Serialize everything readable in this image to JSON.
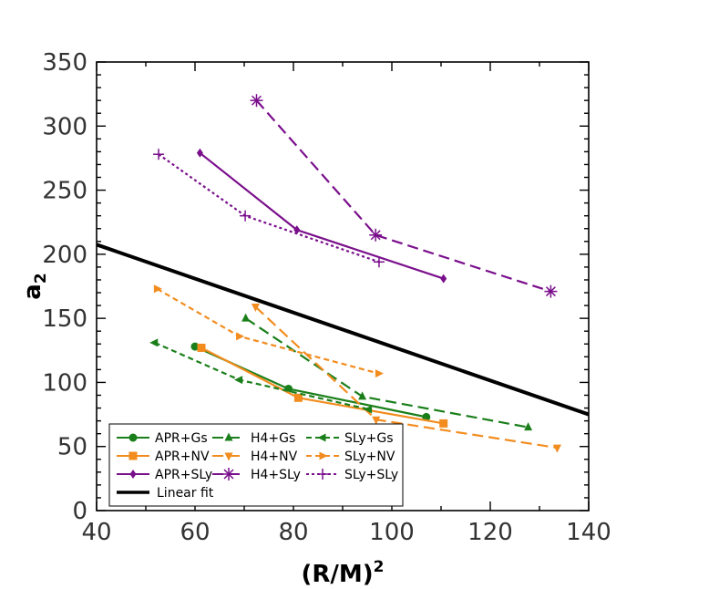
{
  "chart_data": {
    "type": "line",
    "title": "",
    "xlabel": "(R/M)",
    "xlabel_sup": "2",
    "ylabel": "a",
    "ylabel_sub": "2",
    "xlim": [
      40,
      140
    ],
    "ylim": [
      0,
      350
    ],
    "x_ticks": [
      40,
      60,
      80,
      100,
      120,
      140
    ],
    "y_ticks": [
      0,
      50,
      100,
      150,
      200,
      250,
      300,
      350
    ],
    "x_tick_labels": [
      "40",
      "60",
      "80",
      "100",
      "120",
      "140"
    ],
    "y_tick_labels": [
      "0",
      "50",
      "100",
      "150",
      "200",
      "250",
      "300",
      "350"
    ],
    "grid": false,
    "legend_position": "bottom-left",
    "series": [
      {
        "name": "APR+Gs",
        "color": "#1a7f1a",
        "dash": "solid",
        "marker": "circle",
        "points": [
          [
            60.0,
            128
          ],
          [
            79.0,
            95
          ],
          [
            107.0,
            73
          ]
        ]
      },
      {
        "name": "APR+NV",
        "color": "#f28c1e",
        "dash": "solid",
        "marker": "square",
        "points": [
          [
            61.3,
            127
          ],
          [
            81.0,
            88
          ],
          [
            110.5,
            68
          ]
        ]
      },
      {
        "name": "APR+SLy",
        "color": "#7a0f8c",
        "dash": "solid",
        "marker": "diamond",
        "points": [
          [
            61.0,
            279
          ],
          [
            80.7,
            219
          ],
          [
            110.5,
            181
          ]
        ]
      },
      {
        "name": "H4+Gs",
        "color": "#1a7f1a",
        "dash": "longdash",
        "marker": "triangle-up",
        "points": [
          [
            70.3,
            150
          ],
          [
            94.0,
            89
          ],
          [
            127.7,
            65
          ]
        ]
      },
      {
        "name": "H4+NV",
        "color": "#f28c1e",
        "dash": "longdash",
        "marker": "triangle-down",
        "points": [
          [
            72.3,
            159
          ],
          [
            96.8,
            71
          ],
          [
            133.6,
            49
          ]
        ]
      },
      {
        "name": "H4+SLy",
        "color": "#7a0f8c",
        "dash": "longdash",
        "marker": "star",
        "points": [
          [
            72.5,
            320
          ],
          [
            96.7,
            215
          ],
          [
            132.3,
            171
          ]
        ]
      },
      {
        "name": "SLy+Gs",
        "color": "#1a7f1a",
        "dash": "shortdash",
        "marker": "triangle-left",
        "points": [
          [
            51.8,
            131
          ],
          [
            69.0,
            102
          ],
          [
            95.3,
            79
          ]
        ]
      },
      {
        "name": "SLy+NV",
        "color": "#f28c1e",
        "dash": "shortdash",
        "marker": "triangle-right",
        "points": [
          [
            52.3,
            173
          ],
          [
            69.0,
            136
          ],
          [
            97.3,
            107
          ]
        ]
      },
      {
        "name": "SLy+SLy",
        "color": "#7a0f8c",
        "dash": "dotted",
        "marker": "plus",
        "points": [
          [
            52.6,
            278
          ],
          [
            70.2,
            230
          ],
          [
            97.4,
            194
          ]
        ]
      }
    ],
    "fit_line": {
      "name": "Linear fit",
      "color": "#000000",
      "points": [
        [
          40,
          207.5
        ],
        [
          140,
          75
        ]
      ]
    },
    "legend_rows": [
      [
        "APR+Gs",
        "H4+Gs",
        "SLy+Gs"
      ],
      [
        "APR+NV",
        "H4+NV",
        "SLy+NV"
      ],
      [
        "APR+SLy",
        "H4+SLy",
        "SLy+SLy"
      ],
      [
        "Linear fit"
      ]
    ]
  }
}
